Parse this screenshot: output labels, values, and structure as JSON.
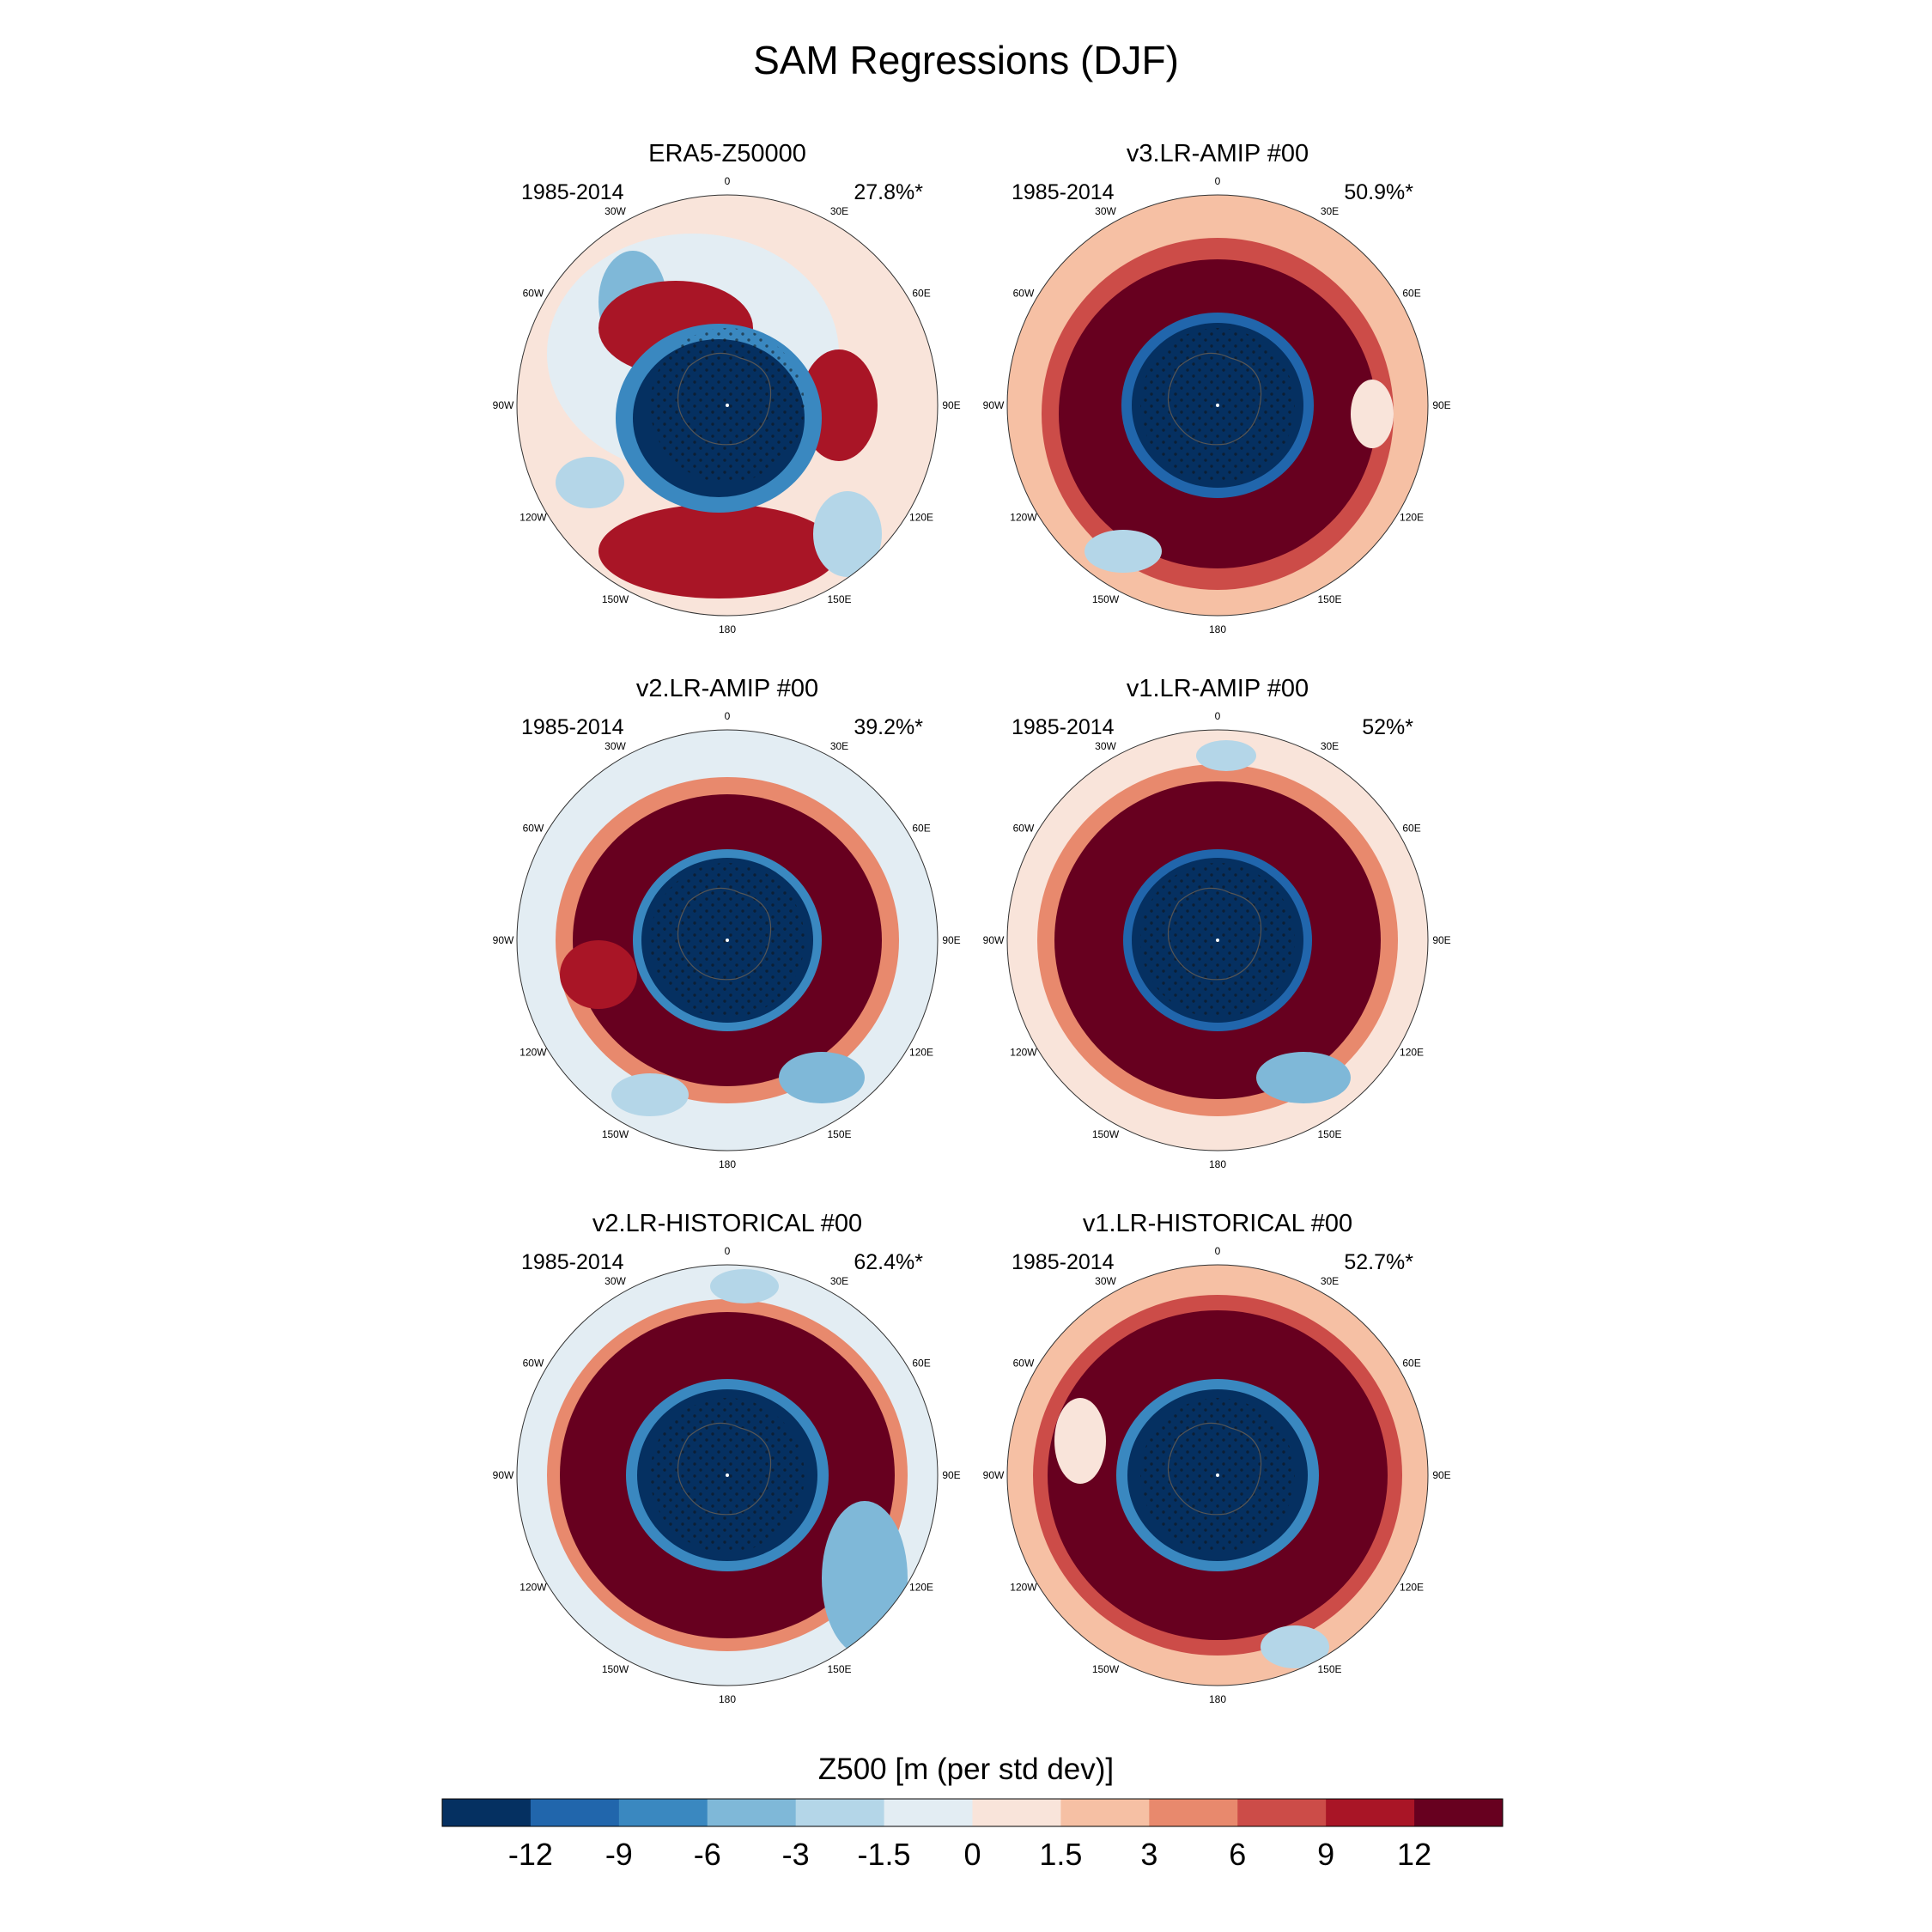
{
  "chart_data": {
    "type": "polar contour maps",
    "title": "SAM Regressions (DJF)",
    "colorbar": {
      "title": "Z500 [m (per std dev)]",
      "levels": [
        "-12",
        "-9",
        "-6",
        "-3",
        "-1.5",
        "0",
        "1.5",
        "3",
        "6",
        "9",
        "12"
      ],
      "colors": [
        "#053061",
        "#2166ac",
        "#3a88c0",
        "#7fb8d8",
        "#b4d6e8",
        "#e3edf3",
        "#f9e4da",
        "#f6c0a4",
        "#e8896d",
        "#cc4c48",
        "#a91526",
        "#67001f"
      ]
    },
    "longitude_labels": [
      "0",
      "30E",
      "60E",
      "90E",
      "120E",
      "150E",
      "180",
      "150W",
      "120W",
      "90W",
      "60W",
      "30W"
    ],
    "panels": [
      {
        "name": "ERA5-Z50000",
        "period": "1985-2014",
        "variance": "27.8%*"
      },
      {
        "name": "v3.LR-AMIP  #00",
        "period": "1985-2014",
        "variance": "50.9%*"
      },
      {
        "name": "v2.LR-AMIP  #00",
        "period": "1985-2014",
        "variance": "39.2%*"
      },
      {
        "name": "v1.LR-AMIP  #00",
        "period": "1985-2014",
        "variance": "52%*"
      },
      {
        "name": "v2.LR-HISTORICAL  #00",
        "period": "1985-2014",
        "variance": "62.4%*"
      },
      {
        "name": "v1.LR-HISTORICAL  #00",
        "period": "1985-2014",
        "variance": "52.7%*"
      }
    ]
  }
}
